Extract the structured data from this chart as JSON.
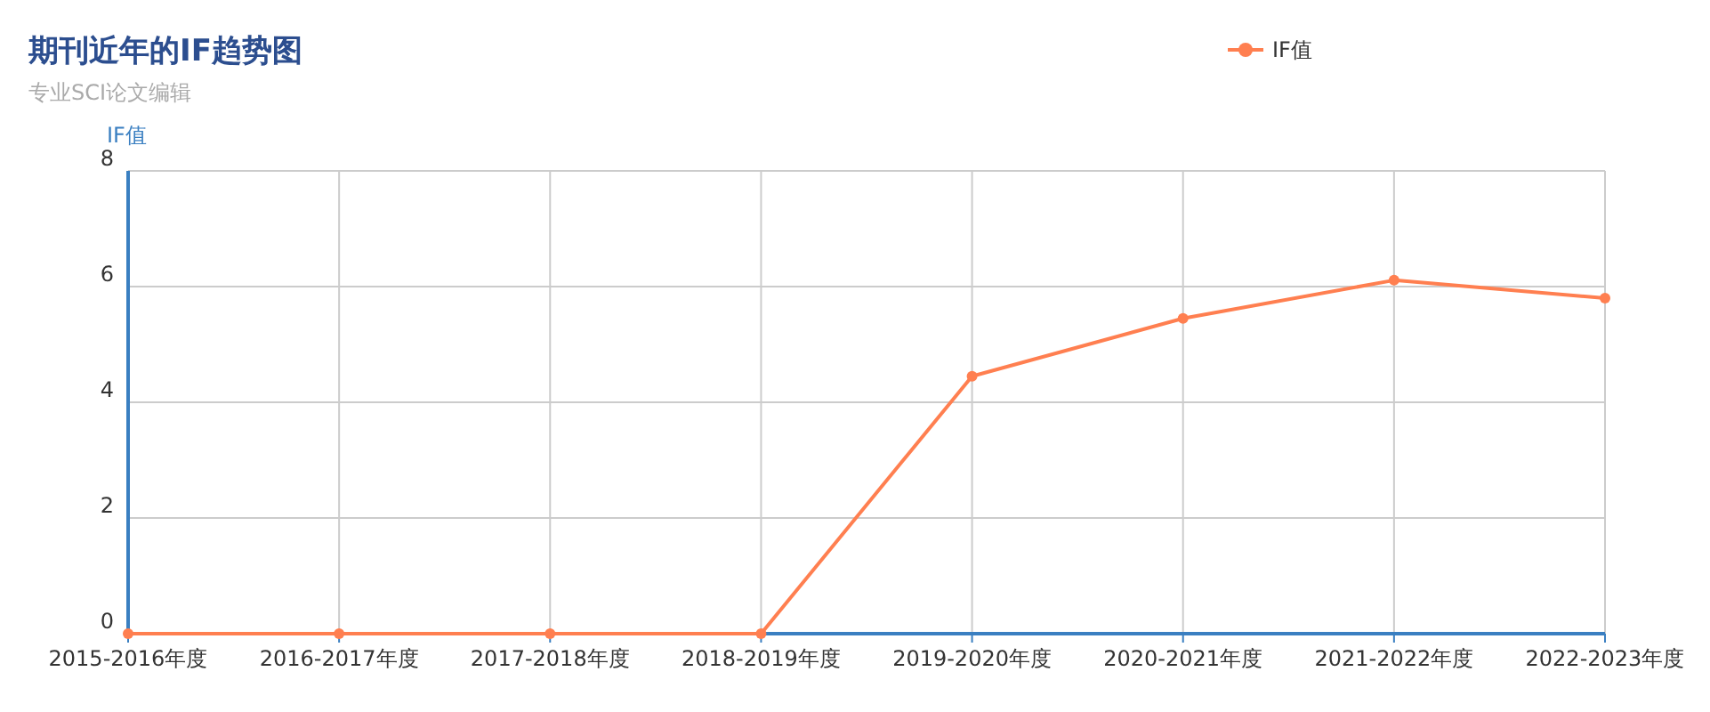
{
  "chart_data": {
    "type": "line",
    "title": "期刊近年的IF趋势图",
    "subtitle": "专业SCI论文编辑",
    "ylabel": "IF值",
    "categories": [
      "2015-2016年度",
      "2016-2017年度",
      "2017-2018年度",
      "2018-2019年度",
      "2019-2020年度",
      "2020-2021年度",
      "2021-2022年度",
      "2022-2023年度"
    ],
    "series": [
      {
        "name": "IF值",
        "color": "#ff7f50",
        "values": [
          0,
          0,
          0,
          0,
          4.45,
          5.45,
          6.11,
          5.8
        ]
      }
    ],
    "ylim": [
      0,
      8
    ],
    "yticks": [
      0,
      2,
      4,
      6,
      8
    ],
    "grid": true,
    "legend": "top right",
    "marker": "circle",
    "line_style": "solid"
  }
}
